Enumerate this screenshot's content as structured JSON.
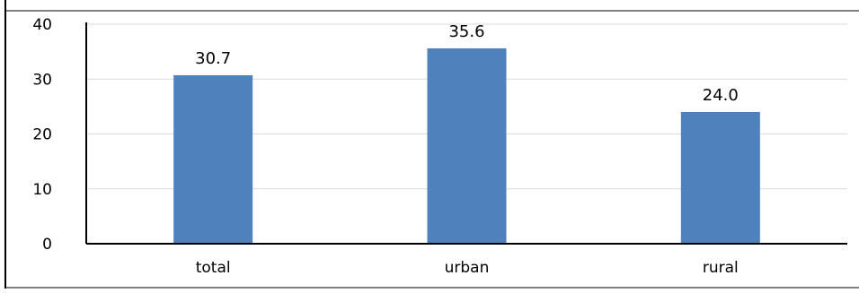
{
  "chart_data": {
    "type": "bar",
    "title": "",
    "xlabel": "",
    "ylabel": "",
    "categories": [
      "total",
      "urban",
      "rural"
    ],
    "values": [
      30.7,
      35.6,
      24.0
    ],
    "data_labels": [
      "30.7",
      "35.6",
      "24.0"
    ],
    "ylim": [
      0,
      40
    ],
    "yticks": [
      0,
      10,
      20,
      30,
      40
    ],
    "ytick_labels": [
      "0",
      "10",
      "20",
      "30",
      "40"
    ],
    "grid": true,
    "legend": "none",
    "colors": {
      "bar": "#4f81bd",
      "grid": "#d9d9d9",
      "axis": "#000000",
      "text": "#000000"
    }
  }
}
